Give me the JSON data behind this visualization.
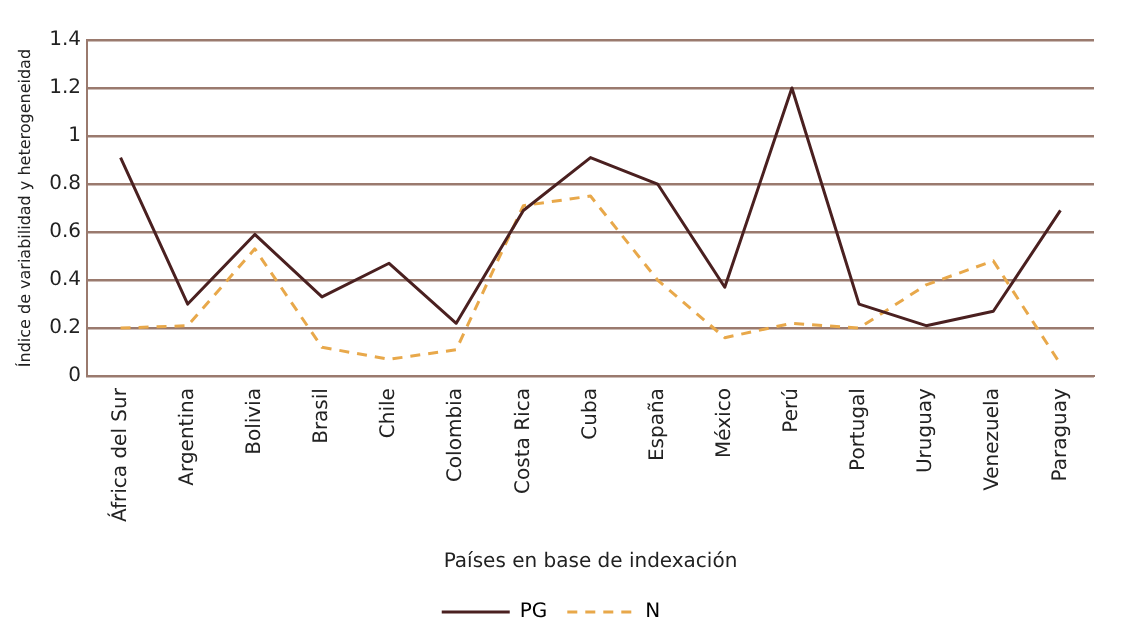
{
  "chart_data": {
    "type": "line",
    "xlabel": "Países en base de indexación",
    "ylabel": "Índice de variabilidad y heterogeneidad",
    "categories": [
      "África del Sur",
      "Argentina",
      "Bolivia",
      "Brasil",
      "Chile",
      "Colombia",
      "Costa Rica",
      "Cuba",
      "España",
      "México",
      "Perú",
      "Portugal",
      "Uruguay",
      "Venezuela",
      "Paraguay"
    ],
    "series": [
      {
        "name": "PG",
        "color": "#4a2020",
        "line_style": "solid",
        "values": [
          0.91,
          0.3,
          0.59,
          0.33,
          0.47,
          0.22,
          0.69,
          0.91,
          0.8,
          0.37,
          1.2,
          0.3,
          0.21,
          0.27,
          0.69
        ]
      },
      {
        "name": "N",
        "color": "#e8a84a",
        "line_style": "dashed",
        "values": [
          0.2,
          0.21,
          0.53,
          0.12,
          0.07,
          0.11,
          0.71,
          0.75,
          0.4,
          0.16,
          0.22,
          0.2,
          0.38,
          0.48,
          0.05
        ]
      }
    ],
    "ylim": [
      0,
      1.4
    ],
    "yticks": [
      0,
      0.2,
      0.4,
      0.6,
      0.8,
      1,
      1.2,
      1.4
    ],
    "grid": "y",
    "legend": "bottom",
    "marker": "none"
  }
}
